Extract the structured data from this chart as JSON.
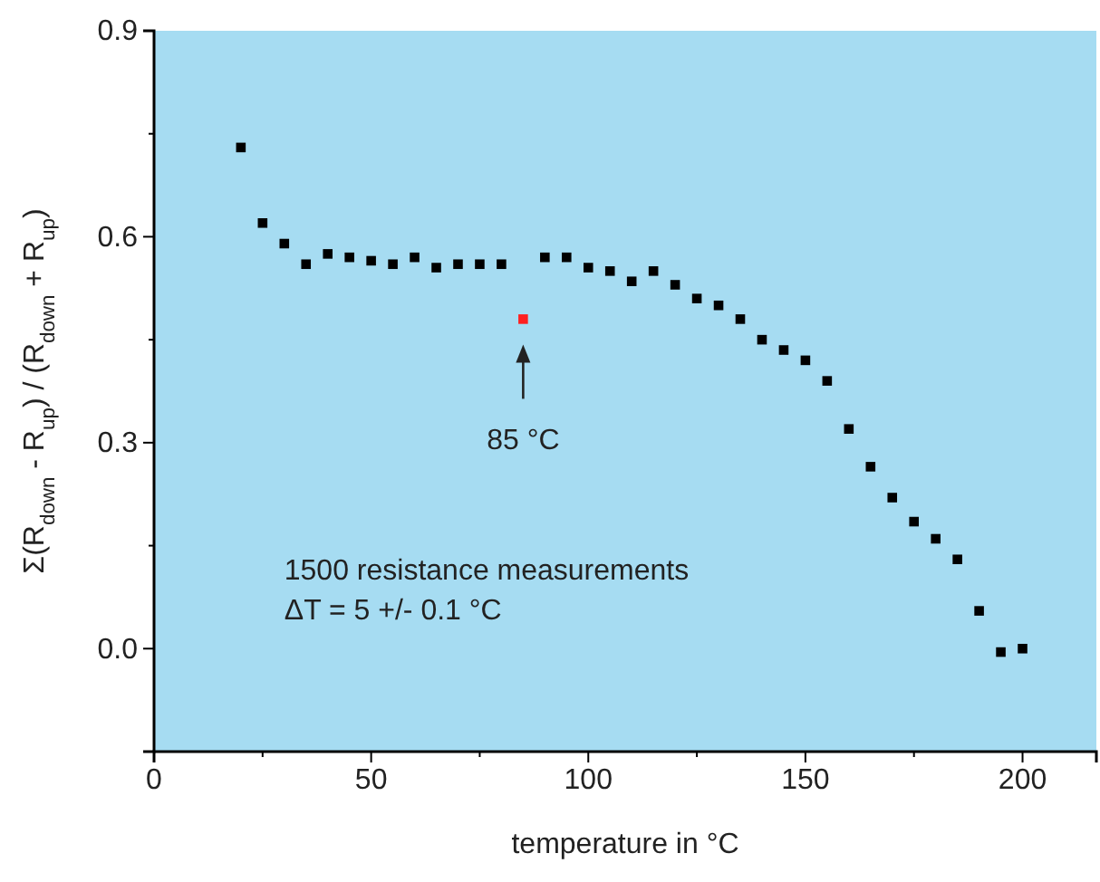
{
  "chart_data": {
    "type": "scatter",
    "xlabel": "temperature in °C",
    "ylabel": "Σ(R$_{down}$ - R$_{up}$) / (R$_{down}$ + R$_{up}$)",
    "xlim": [
      0,
      217
    ],
    "ylim": [
      -0.15,
      0.9
    ],
    "xticks": [
      0,
      {
        "value": 25,
        "label": null
      },
      50,
      {
        "value": 75,
        "label": null
      },
      100,
      {
        "value": 125,
        "label": null
      },
      150,
      {
        "value": 175,
        "label": null
      },
      200
    ],
    "yticks": [
      {
        "value": -0.15,
        "label": null
      },
      {
        "value": 0,
        "label": "0.0"
      },
      {
        "value": 0.15,
        "label": null
      },
      {
        "value": 0.3,
        "label": "0.3"
      },
      {
        "value": 0.45,
        "label": null
      },
      {
        "value": 0.6,
        "label": "0.6"
      },
      {
        "value": 0.75,
        "label": null
      },
      {
        "value": 0.9,
        "label": "0.9"
      }
    ],
    "marker": "square",
    "grid": false,
    "series": [
      {
        "color": "#000000",
        "x": [
          20,
          25,
          30,
          35,
          40,
          45,
          50,
          55,
          60,
          65,
          70,
          75,
          80,
          90,
          95,
          100,
          105,
          110,
          115,
          120,
          125,
          130,
          135,
          140,
          145,
          150,
          155,
          160,
          165,
          170,
          175,
          180,
          185,
          190,
          195,
          200
        ],
        "values": [
          0.73,
          0.62,
          0.59,
          0.56,
          0.575,
          0.57,
          0.565,
          0.56,
          0.57,
          0.555,
          0.56,
          0.56,
          0.56,
          0.57,
          0.57,
          0.555,
          0.55,
          0.535,
          0.55,
          0.53,
          0.51,
          0.5,
          0.48,
          0.45,
          0.435,
          0.42,
          0.39,
          0.32,
          0.265,
          0.22,
          0.185,
          0.16,
          0.13,
          0.055,
          -0.005,
          0
        ]
      },
      {
        "color": "#ff2020",
        "x": [
          85
        ],
        "values": [
          0.48
        ]
      }
    ],
    "annotations": [
      "85 °C",
      "1500 resistance measurements",
      "ΔT = 5 +/- 0.1 °C"
    ]
  }
}
